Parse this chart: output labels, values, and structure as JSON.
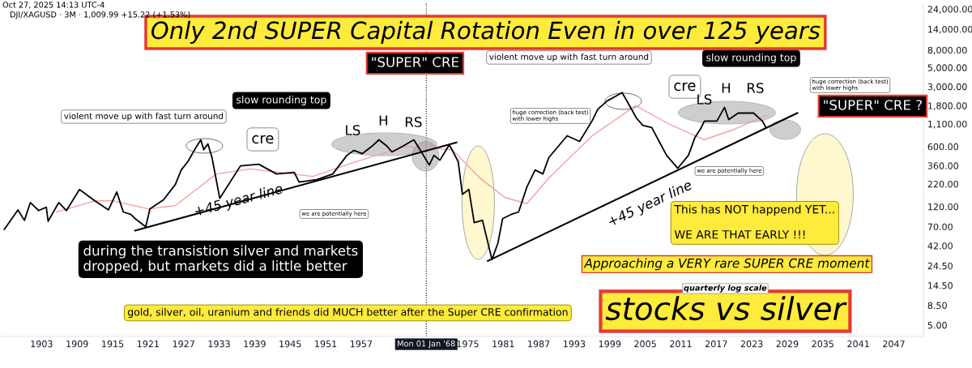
{
  "chart_data": {
    "type": "line",
    "title": "Only 2nd SUPER Capital Rotation Even in over 125 years",
    "log": "y",
    "xlim": [
      1896.3,
      2052
    ],
    "xticks": [
      1903,
      1909,
      1915,
      1921,
      1927,
      1933,
      1939,
      1945,
      1951,
      1957,
      1975,
      1981,
      1987,
      1993,
      1999,
      2005,
      2011,
      2017,
      2023,
      2029,
      2035,
      2041,
      2047
    ],
    "ylim": [
      3.7,
      28000
    ],
    "yticks": [
      {
        "value": 5,
        "label": "5.00"
      },
      {
        "value": 8.5,
        "label": "8.50"
      },
      {
        "value": 14.5,
        "label": "14.50"
      },
      {
        "value": 24.5,
        "label": "24.50"
      },
      {
        "value": 42,
        "label": "42.00"
      },
      {
        "value": 70,
        "label": "70.00"
      },
      {
        "value": 120,
        "label": "120.00"
      },
      {
        "value": 220,
        "label": "220.00"
      },
      {
        "value": 360,
        "label": "360.00"
      },
      {
        "value": 600,
        "label": "600.00"
      },
      {
        "value": 1100,
        "label": "1,100.00"
      },
      {
        "value": 1800,
        "label": "1,800.00"
      },
      {
        "value": 3000,
        "label": "3,000.00"
      },
      {
        "value": 5000,
        "label": "5,000.00"
      },
      {
        "value": 8000,
        "label": "8,000.00"
      },
      {
        "value": 14000,
        "label": "14,000.00"
      },
      {
        "value": 24000,
        "label": "24,000.00"
      }
    ],
    "ref_lines": [
      {
        "axis": "x",
        "value": 1968.0,
        "label": "Mon 01 Jan '68",
        "color": "#000000",
        "line_style": "dotted"
      }
    ],
    "series": [
      {
        "color": "#000000",
        "x": [
          1896.7,
          1899.0,
          1900.1,
          1901.1,
          1902.5,
          1903.8,
          1904.1,
          1905.9,
          1907.2,
          1909.4,
          1912.0,
          1914.3,
          1915.7,
          1916.8,
          1918.1,
          1918.8,
          1920.6,
          1921.3,
          1923.6,
          1925.6,
          1926.6,
          1927.7,
          1929.1,
          1929.9,
          1930.4,
          1931.1,
          1931.8,
          1933.1,
          1936.6,
          1939.7,
          1942.7,
          1945.7,
          1946.5,
          1949.5,
          1952.2,
          1954.6,
          1955.8,
          1957.2,
          1958.8,
          1960.0,
          1961.4,
          1962.2,
          1964.0,
          1965.9,
          1967.1,
          1968.5,
          1969.3,
          1970.3,
          1971.9,
          1973.4,
          1974.1,
          1975.2,
          1976.1,
          1977.5,
          1979.1,
          1980.1,
          1980.9,
          1982.3,
          1983.6,
          1985.0,
          1986.4,
          1987.7,
          1988.7,
          1991.8,
          1993.9,
          1996.0,
          1997.0,
          1998.6,
          2000.3,
          2001.1,
          2002.9,
          2003.5,
          2004.6,
          2006.1,
          2007.5,
          2008.6,
          2010.5,
          2012.3,
          2013.4,
          2014.3,
          2015.0,
          2017.1,
          2018.4,
          2019.1,
          2020.7,
          2023.3,
          2024.8,
          2025.4
        ],
        "values": [
          65,
          110,
          83,
          134,
          108,
          118,
          81,
          134,
          108,
          190,
          140,
          110,
          178,
          104,
          97,
          87,
          70,
          113,
          144,
          217,
          321,
          400,
          590,
          720,
          553,
          646,
          446,
          150,
          358,
          374,
          288,
          301,
          232,
          247,
          288,
          475,
          542,
          497,
          604,
          720,
          604,
          519,
          604,
          720,
          530,
          366,
          475,
          417,
          631,
          400,
          167,
          190,
          78,
          83,
          29,
          45,
          87,
          97,
          104,
          203,
          321,
          288,
          446,
          802,
          689,
          1190,
          1640,
          2050,
          2380,
          2550,
          1540,
          1290,
          1060,
          1000,
          660,
          475,
          336,
          475,
          767,
          955,
          1190,
          1190,
          1720,
          1240,
          1475,
          1475,
          1190,
          1000
        ]
      },
      {
        "color": "#f4a0a0",
        "x": [
          1905.5,
          1907.4,
          1912.0,
          1915.1,
          1921.0,
          1925.6,
          1932.5,
          1938.3,
          1948.8,
          1956.6,
          1964.5,
          1972.4,
          1977.0,
          1981.3,
          1985.0,
          1988.7,
          1996.0,
          2003.4,
          2009.0,
          2014.9,
          2020.0,
          2025.4
        ],
        "values": [
          104,
          113,
          140,
          140,
          113,
          123,
          288,
          330,
          270,
          410,
          604,
          553,
          260,
          153,
          130,
          258,
          800,
          1800,
          1100,
          720,
          950,
          1380
        ]
      },
      {
        "color": "#000000",
        "x": [
          1918.8,
          1973.1
        ],
        "values": [
          63,
          670
        ]
      },
      {
        "color": "#000000",
        "x": [
          1978.4,
          2030.7
        ],
        "values": [
          28,
          1475
        ]
      }
    ],
    "annotations": [
      "\"SUPER\" CRE",
      "slow rounding top",
      "violent move up with fast turn around",
      "cre",
      "LS",
      "H",
      "RS",
      "huge correction (back test)\nwith lower highs",
      "we are potentially here",
      "+45 year line",
      "during the transistion silver and markets\ndropped, but markets did a little better",
      "gold, silver, oil, uranium and friends did MUCH better after the Super CRE confirmation",
      "violent move up with fast turn around",
      "cre",
      "LS",
      "H",
      "RS",
      "huge correction (back test)\nwith lower highs",
      "we are potentially here",
      "+45 year line",
      "slow rounding top",
      "\"SUPER\" CRE ?",
      "This has NOT happend YET...\n\nWE ARE THAT EARLY !!!",
      "Approaching a VERY rare SUPER CRE moment",
      "stocks vs silver",
      "quarterly log scale",
      "Oct 27, 2025 14:13 UTC-4",
      "DJI/XAGUSD · 3M · 1,009.99 +15.22 (+1.53%)"
    ]
  }
}
